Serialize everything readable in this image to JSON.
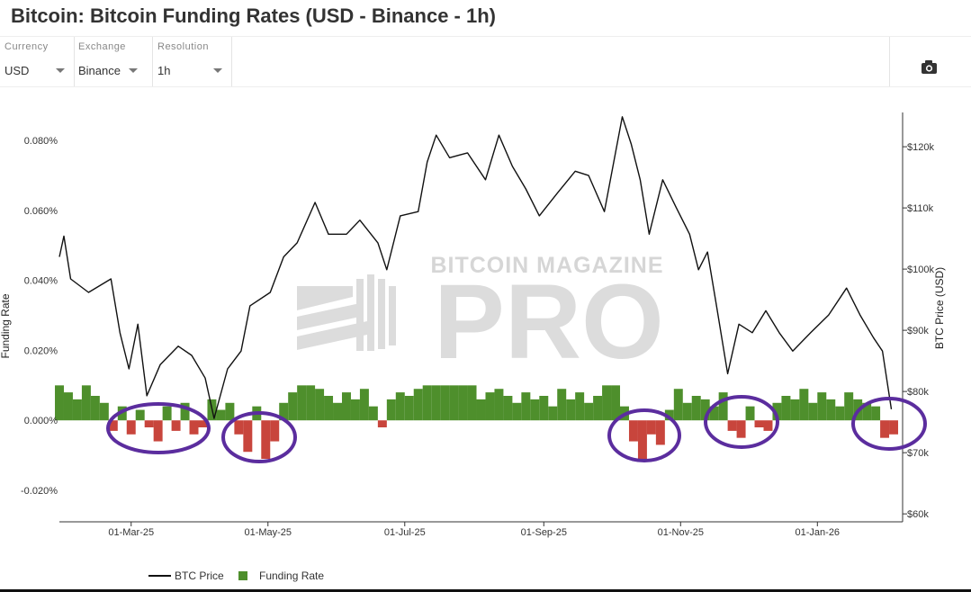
{
  "header": {
    "title": "Bitcoin: Bitcoin Funding Rates (USD - Binance - 1h)"
  },
  "controls": [
    {
      "label": "Currency",
      "value": "USD"
    },
    {
      "label": "Exchange",
      "value": "Binance"
    },
    {
      "label": "Resolution",
      "value": "1h"
    }
  ],
  "watermark": [
    "BITCOIN MAGAZINE",
    "PRO"
  ],
  "chart_data": {
    "type": "bar-line",
    "y_label": "Funding Rate",
    "y2_label": "BTC Price (USD)",
    "xlim": [
      "2025-01-28",
      "2026-02-08"
    ],
    "xticks": [
      {
        "value": "2025-03-01",
        "label": "01-Mar-25"
      },
      {
        "value": "2025-05-01",
        "label": "01-May-25"
      },
      {
        "value": "2025-07-01",
        "label": "01-Jul-25"
      },
      {
        "value": "2025-09-01",
        "label": "01-Sep-25"
      },
      {
        "value": "2025-11-01",
        "label": "01-Nov-25"
      },
      {
        "value": "2026-01-01",
        "label": "01-Jan-26"
      }
    ],
    "ylim": [
      -0.029,
      0.088
    ],
    "yticks": [
      {
        "value": -0.02,
        "label": "-0.020%"
      },
      {
        "value": 0,
        "label": "0.000%"
      },
      {
        "value": 0.02,
        "label": "0.020%"
      },
      {
        "value": 0.04,
        "label": "0.040%"
      },
      {
        "value": 0.06,
        "label": "0.060%"
      },
      {
        "value": 0.08,
        "label": "0.080%"
      }
    ],
    "y2lim": [
      58700,
      125600
    ],
    "y2ticks": [
      {
        "value": 60000,
        "label": "$60k"
      },
      {
        "value": 70000,
        "label": "$70k"
      },
      {
        "value": 80000,
        "label": "$80k"
      },
      {
        "value": 90000,
        "label": "$90k"
      },
      {
        "value": 100000,
        "label": "$100k"
      },
      {
        "value": 110000,
        "label": "$110k"
      },
      {
        "value": 120000,
        "label": "$120k"
      }
    ],
    "grid": true,
    "negative_color": "#c8453c",
    "series": [
      {
        "name": "BTC Price",
        "type": "line",
        "axis": "y2",
        "color": "#111111",
        "x": [
          "2025-01-28",
          "2025-01-30",
          "2025-02-02",
          "2025-02-10",
          "2025-02-20",
          "2025-02-24",
          "2025-02-28",
          "2025-03-04",
          "2025-03-08",
          "2025-03-14",
          "2025-03-22",
          "2025-03-28",
          "2025-04-03",
          "2025-04-07",
          "2025-04-13",
          "2025-04-19",
          "2025-04-23",
          "2025-05-02",
          "2025-05-08",
          "2025-05-14",
          "2025-05-22",
          "2025-05-28",
          "2025-06-05",
          "2025-06-11",
          "2025-06-19",
          "2025-06-23",
          "2025-06-29",
          "2025-07-07",
          "2025-07-11",
          "2025-07-15",
          "2025-07-21",
          "2025-07-29",
          "2025-08-06",
          "2025-08-12",
          "2025-08-18",
          "2025-08-24",
          "2025-08-30",
          "2025-09-07",
          "2025-09-15",
          "2025-09-21",
          "2025-09-28",
          "2025-10-06",
          "2025-10-10",
          "2025-10-14",
          "2025-10-18",
          "2025-10-24",
          "2025-10-30",
          "2025-11-05",
          "2025-11-09",
          "2025-11-13",
          "2025-11-17",
          "2025-11-22",
          "2025-11-27",
          "2025-12-03",
          "2025-12-09",
          "2025-12-15",
          "2025-12-21",
          "2025-12-29",
          "2026-01-06",
          "2026-01-14",
          "2026-01-20",
          "2026-01-26",
          "2026-01-30",
          "2026-02-03"
        ],
        "values": [
          102000,
          105400,
          98400,
          96200,
          98400,
          89600,
          83700,
          91000,
          79300,
          84400,
          87400,
          85900,
          82200,
          75600,
          83700,
          86600,
          94000,
          96200,
          102000,
          104300,
          110900,
          105700,
          105700,
          108000,
          104300,
          99900,
          108700,
          109400,
          117500,
          121900,
          118200,
          119000,
          114600,
          121900,
          116800,
          113100,
          108700,
          112400,
          116000,
          115300,
          109400,
          124900,
          120400,
          114600,
          105700,
          114600,
          110100,
          105700,
          99900,
          102800,
          94000,
          82900,
          91000,
          89600,
          93200,
          89600,
          86600,
          89600,
          92500,
          96900,
          92500,
          88800,
          86600,
          77100
        ]
      },
      {
        "name": "Funding Rate",
        "type": "bar",
        "axis": "y",
        "color": "#4e8f2c",
        "x": [
          "2025-01-28",
          "2025-02-01",
          "2025-02-05",
          "2025-02-09",
          "2025-02-13",
          "2025-02-17",
          "2025-02-21",
          "2025-02-25",
          "2025-03-01",
          "2025-03-05",
          "2025-03-09",
          "2025-03-13",
          "2025-03-17",
          "2025-03-21",
          "2025-03-25",
          "2025-03-29",
          "2025-04-02",
          "2025-04-06",
          "2025-04-10",
          "2025-04-14",
          "2025-04-18",
          "2025-04-22",
          "2025-04-26",
          "2025-04-30",
          "2025-05-04",
          "2025-05-08",
          "2025-05-12",
          "2025-05-16",
          "2025-05-20",
          "2025-05-24",
          "2025-05-28",
          "2025-06-01",
          "2025-06-05",
          "2025-06-09",
          "2025-06-13",
          "2025-06-17",
          "2025-06-21",
          "2025-06-25",
          "2025-06-29",
          "2025-07-03",
          "2025-07-07",
          "2025-07-11",
          "2025-07-15",
          "2025-07-19",
          "2025-07-23",
          "2025-07-27",
          "2025-07-31",
          "2025-08-04",
          "2025-08-08",
          "2025-08-12",
          "2025-08-16",
          "2025-08-20",
          "2025-08-24",
          "2025-08-28",
          "2025-09-01",
          "2025-09-05",
          "2025-09-09",
          "2025-09-13",
          "2025-09-17",
          "2025-09-21",
          "2025-09-25",
          "2025-09-29",
          "2025-10-03",
          "2025-10-07",
          "2025-10-11",
          "2025-10-15",
          "2025-10-19",
          "2025-10-23",
          "2025-10-27",
          "2025-10-31",
          "2025-11-04",
          "2025-11-08",
          "2025-11-12",
          "2025-11-16",
          "2025-11-20",
          "2025-11-24",
          "2025-11-28",
          "2025-12-02",
          "2025-12-06",
          "2025-12-10",
          "2025-12-14",
          "2025-12-18",
          "2025-12-22",
          "2025-12-26",
          "2025-12-30",
          "2026-01-03",
          "2026-01-07",
          "2026-01-11",
          "2026-01-15",
          "2026-01-19",
          "2026-01-23",
          "2026-01-27",
          "2026-01-31",
          "2026-02-04"
        ],
        "values": [
          0.01,
          0.008,
          0.006,
          0.01,
          0.007,
          0.005,
          -0.003,
          0.004,
          -0.004,
          0.003,
          -0.002,
          -0.006,
          0.004,
          -0.003,
          0.005,
          -0.004,
          -0.002,
          0.006,
          0.003,
          0.005,
          -0.004,
          -0.009,
          0.004,
          -0.011,
          -0.006,
          0.005,
          0.008,
          0.01,
          0.01,
          0.009,
          0.007,
          0.005,
          0.008,
          0.006,
          0.009,
          0.004,
          -0.002,
          0.006,
          0.008,
          0.007,
          0.009,
          0.01,
          0.01,
          0.01,
          0.01,
          0.01,
          0.01,
          0.006,
          0.008,
          0.009,
          0.007,
          0.005,
          0.008,
          0.006,
          0.007,
          0.004,
          0.009,
          0.006,
          0.008,
          0.005,
          0.007,
          0.01,
          0.01,
          0.004,
          -0.006,
          -0.011,
          -0.004,
          -0.007,
          0.003,
          0.009,
          0.005,
          0.007,
          0.006,
          0.004,
          0.008,
          -0.003,
          -0.005,
          0.004,
          -0.002,
          -0.003,
          0.005,
          0.007,
          0.006,
          0.009,
          0.005,
          0.008,
          0.006,
          0.004,
          0.008,
          0.006,
          0.005,
          0.004,
          -0.005,
          -0.004
        ]
      }
    ]
  }
}
